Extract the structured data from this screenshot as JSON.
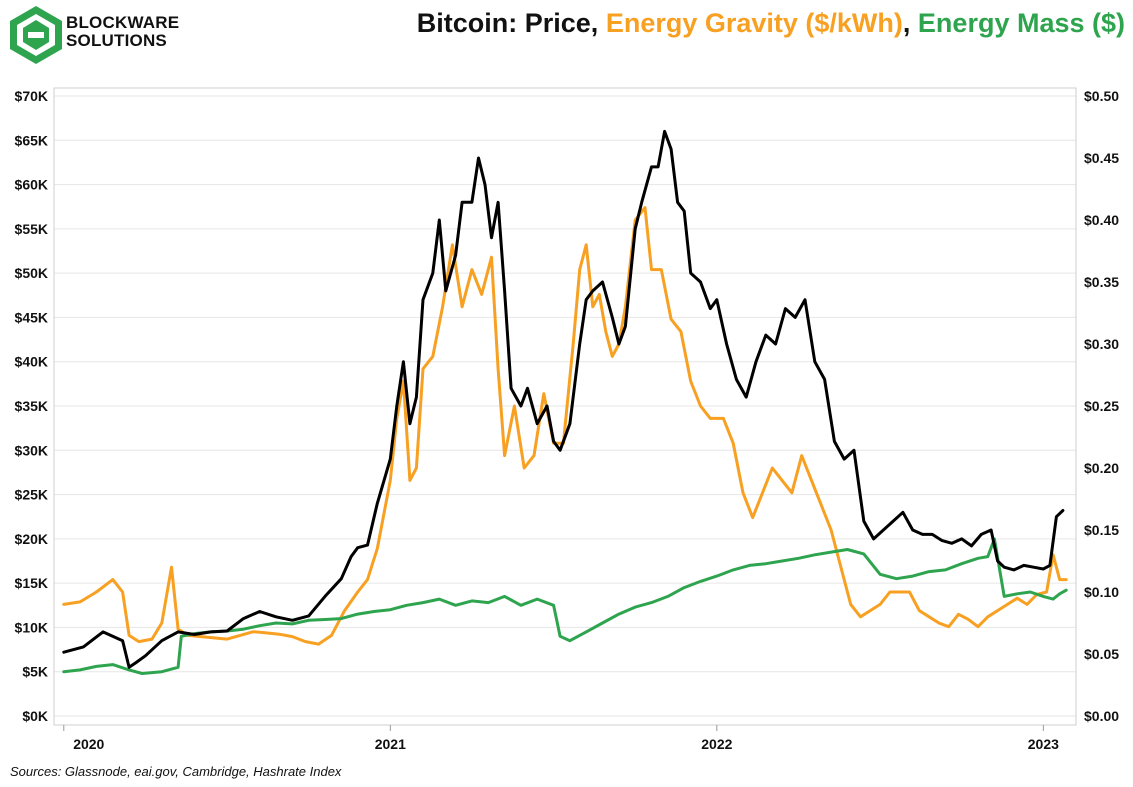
{
  "brand": {
    "line1": "BLOCKWARE",
    "line2": "SOLUTIONS",
    "logo_icon": "blockware-logo-icon",
    "color": "#2ea44f"
  },
  "title": {
    "part1": "Bitcoin: Price",
    "sep1": ", ",
    "part2": "Energy Gravity ($/kWh)",
    "sep2": ", ",
    "part3": "Energy Mass ($)"
  },
  "sources": "Sources: Glassnode, eai.gov, Cambridge, Hashrate Index",
  "colors": {
    "price": "#000000",
    "gravity": "#f7a021",
    "mass": "#2ea44f",
    "grid": "#e6e6e6"
  },
  "chart_data": {
    "type": "line",
    "x_ticks": [
      "2020",
      "2021",
      "2022",
      "2023"
    ],
    "x_tick_values": [
      2020.0,
      2021.0,
      2022.0,
      2023.0
    ],
    "xlim": [
      2019.97,
      2023.1
    ],
    "y_left": {
      "ticks": [
        "$0K",
        "$5K",
        "$10K",
        "$15K",
        "$20K",
        "$25K",
        "$30K",
        "$35K",
        "$40K",
        "$45K",
        "$50K",
        "$55K",
        "$60K",
        "$65K",
        "$70K"
      ],
      "lim": [
        0,
        70
      ]
    },
    "y_right": {
      "ticks": [
        "$0.00",
        "$0.05",
        "$0.10",
        "$0.15",
        "$0.20",
        "$0.25",
        "$0.30",
        "$0.35",
        "$0.40",
        "$0.45",
        "$0.50"
      ],
      "lim": [
        0,
        0.5
      ]
    },
    "grid": true,
    "series": [
      {
        "name": "Price",
        "axis": "left",
        "x": [
          2020.0,
          2020.06,
          2020.12,
          2020.18,
          2020.2,
          2020.22,
          2020.25,
          2020.3,
          2020.35,
          2020.4,
          2020.45,
          2020.5,
          2020.55,
          2020.6,
          2020.65,
          2020.7,
          2020.75,
          2020.8,
          2020.85,
          2020.88,
          2020.9,
          2020.93,
          2020.96,
          2021.0,
          2021.02,
          2021.04,
          2021.06,
          2021.08,
          2021.1,
          2021.13,
          2021.15,
          2021.17,
          2021.2,
          2021.22,
          2021.25,
          2021.27,
          2021.29,
          2021.31,
          2021.33,
          2021.35,
          2021.37,
          2021.4,
          2021.42,
          2021.45,
          2021.48,
          2021.5,
          2021.52,
          2021.55,
          2021.58,
          2021.6,
          2021.62,
          2021.65,
          2021.68,
          2021.7,
          2021.72,
          2021.75,
          2021.77,
          2021.8,
          2021.82,
          2021.84,
          2021.86,
          2021.88,
          2021.9,
          2021.92,
          2021.95,
          2021.98,
          2022.0,
          2022.03,
          2022.06,
          2022.09,
          2022.12,
          2022.15,
          2022.18,
          2022.21,
          2022.24,
          2022.27,
          2022.3,
          2022.33,
          2022.36,
          2022.39,
          2022.42,
          2022.45,
          2022.48,
          2022.51,
          2022.54,
          2022.57,
          2022.6,
          2022.63,
          2022.66,
          2022.69,
          2022.72,
          2022.75,
          2022.78,
          2022.81,
          2022.84,
          2022.86,
          2022.88,
          2022.91,
          2022.94,
          2022.97,
          2023.0,
          2023.02,
          2023.04,
          2023.06
        ],
        "y": [
          7.2,
          7.8,
          9.5,
          8.5,
          5.5,
          6.0,
          6.8,
          8.5,
          9.5,
          9.2,
          9.5,
          9.6,
          11.0,
          11.8,
          11.2,
          10.8,
          11.3,
          13.5,
          15.5,
          18.0,
          19.0,
          19.3,
          24.0,
          29.0,
          35.0,
          40.0,
          33.0,
          36.0,
          47.0,
          50.0,
          56.0,
          48.0,
          52.0,
          58.0,
          58.0,
          63.0,
          60.0,
          54.0,
          58.0,
          48.0,
          37.0,
          35.0,
          37.0,
          33.0,
          35.0,
          31.0,
          30.0,
          33.0,
          42.0,
          47.0,
          48.0,
          49.0,
          45.0,
          42.0,
          44.0,
          55.0,
          58.0,
          62.0,
          62.0,
          66.0,
          64.0,
          58.0,
          57.0,
          50.0,
          49.0,
          46.0,
          47.0,
          42.0,
          38.0,
          36.0,
          40.0,
          43.0,
          42.0,
          46.0,
          45.0,
          47.0,
          40.0,
          38.0,
          31.0,
          29.0,
          30.0,
          22.0,
          20.0,
          21.0,
          22.0,
          23.0,
          21.0,
          20.5,
          20.5,
          19.8,
          19.5,
          20.0,
          19.2,
          20.5,
          21.0,
          17.5,
          16.8,
          16.5,
          17.0,
          16.8,
          16.6,
          17.0,
          22.5,
          23.2
        ],
        "label": ""
      },
      {
        "name": "Energy Gravity ($/kWh)",
        "axis": "right",
        "x": [
          2020.0,
          2020.05,
          2020.1,
          2020.15,
          2020.18,
          2020.2,
          2020.23,
          2020.27,
          2020.3,
          2020.33,
          2020.35,
          2020.38,
          2020.42,
          2020.46,
          2020.5,
          2020.54,
          2020.58,
          2020.62,
          2020.66,
          2020.7,
          2020.74,
          2020.78,
          2020.82,
          2020.86,
          2020.9,
          2020.93,
          2020.96,
          2021.0,
          2021.02,
          2021.04,
          2021.06,
          2021.08,
          2021.1,
          2021.13,
          2021.16,
          2021.19,
          2021.22,
          2021.25,
          2021.28,
          2021.31,
          2021.33,
          2021.35,
          2021.38,
          2021.41,
          2021.44,
          2021.47,
          2021.5,
          2021.53,
          2021.56,
          2021.58,
          2021.6,
          2021.62,
          2021.64,
          2021.66,
          2021.68,
          2021.7,
          2021.72,
          2021.75,
          2021.78,
          2021.8,
          2021.83,
          2021.86,
          2021.89,
          2021.92,
          2021.95,
          2021.98,
          2022.02,
          2022.05,
          2022.08,
          2022.11,
          2022.14,
          2022.17,
          2022.2,
          2022.23,
          2022.26,
          2022.29,
          2022.32,
          2022.35,
          2022.38,
          2022.41,
          2022.44,
          2022.47,
          2022.5,
          2022.53,
          2022.56,
          2022.59,
          2022.62,
          2022.65,
          2022.68,
          2022.71,
          2022.74,
          2022.77,
          2022.8,
          2022.83,
          2022.86,
          2022.89,
          2022.92,
          2022.95,
          2022.98,
          2023.01,
          2023.03,
          2023.05,
          2023.07
        ],
        "y": [
          0.09,
          0.092,
          0.1,
          0.11,
          0.1,
          0.065,
          0.06,
          0.062,
          0.075,
          0.12,
          0.07,
          0.065,
          0.064,
          0.063,
          0.062,
          0.065,
          0.068,
          0.067,
          0.066,
          0.064,
          0.06,
          0.058,
          0.065,
          0.085,
          0.1,
          0.11,
          0.135,
          0.19,
          0.24,
          0.27,
          0.19,
          0.2,
          0.28,
          0.29,
          0.33,
          0.38,
          0.33,
          0.36,
          0.34,
          0.37,
          0.28,
          0.21,
          0.25,
          0.2,
          0.21,
          0.26,
          0.22,
          0.22,
          0.3,
          0.36,
          0.38,
          0.33,
          0.34,
          0.31,
          0.29,
          0.3,
          0.33,
          0.4,
          0.41,
          0.36,
          0.36,
          0.32,
          0.31,
          0.27,
          0.25,
          0.24,
          0.24,
          0.22,
          0.18,
          0.16,
          0.18,
          0.2,
          0.19,
          0.18,
          0.21,
          0.19,
          0.17,
          0.15,
          0.12,
          0.09,
          0.08,
          0.085,
          0.09,
          0.1,
          0.1,
          0.1,
          0.085,
          0.08,
          0.075,
          0.072,
          0.082,
          0.078,
          0.072,
          0.08,
          0.085,
          0.09,
          0.095,
          0.09,
          0.098,
          0.1,
          0.13,
          0.11,
          0.11
        ],
        "label": ""
      },
      {
        "name": "Energy Mass ($)",
        "axis": "left",
        "x": [
          2020.0,
          2020.05,
          2020.1,
          2020.15,
          2020.2,
          2020.24,
          2020.3,
          2020.35,
          2020.36,
          2020.4,
          2020.45,
          2020.5,
          2020.55,
          2020.6,
          2020.65,
          2020.7,
          2020.75,
          2020.8,
          2020.85,
          2020.9,
          2020.95,
          2021.0,
          2021.05,
          2021.1,
          2021.15,
          2021.2,
          2021.25,
          2021.3,
          2021.35,
          2021.4,
          2021.45,
          2021.5,
          2021.52,
          2021.55,
          2021.6,
          2021.65,
          2021.7,
          2021.75,
          2021.8,
          2021.85,
          2021.9,
          2021.95,
          2022.0,
          2022.05,
          2022.1,
          2022.15,
          2022.2,
          2022.25,
          2022.3,
          2022.35,
          2022.4,
          2022.45,
          2022.5,
          2022.55,
          2022.6,
          2022.65,
          2022.7,
          2022.75,
          2022.8,
          2022.83,
          2022.85,
          2022.88,
          2022.92,
          2022.96,
          2023.0,
          2023.03,
          2023.05,
          2023.07
        ],
        "y": [
          5.0,
          5.2,
          5.6,
          5.8,
          5.2,
          4.8,
          5.0,
          5.5,
          9.0,
          9.3,
          9.5,
          9.6,
          9.8,
          10.2,
          10.5,
          10.4,
          10.8,
          10.9,
          11.0,
          11.5,
          11.8,
          12.0,
          12.5,
          12.8,
          13.2,
          12.5,
          13.0,
          12.8,
          13.5,
          12.5,
          13.2,
          12.5,
          9.0,
          8.5,
          9.5,
          10.5,
          11.5,
          12.3,
          12.8,
          13.5,
          14.5,
          15.2,
          15.8,
          16.5,
          17.0,
          17.2,
          17.5,
          17.8,
          18.2,
          18.5,
          18.8,
          18.3,
          16.0,
          15.5,
          15.8,
          16.3,
          16.5,
          17.2,
          17.8,
          18.0,
          20.0,
          13.5,
          13.8,
          14.0,
          13.5,
          13.2,
          13.8,
          14.2
        ],
        "label": ""
      }
    ]
  }
}
